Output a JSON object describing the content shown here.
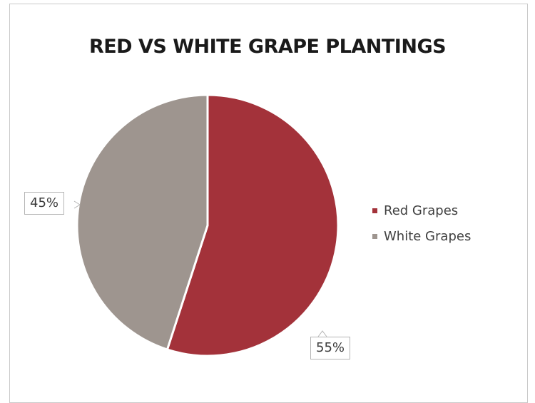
{
  "chart_data": {
    "type": "pie",
    "title": "RED VS WHITE GRAPE PLANTINGS",
    "categories": [
      "Red Grapes",
      "White Grapes"
    ],
    "values": [
      55,
      45
    ],
    "data_labels": [
      "55%",
      "45%"
    ],
    "colors": [
      "#a3323a",
      "#9e958f"
    ],
    "legend_position": "right",
    "start_angle": "12 o'clock, clockwise"
  }
}
